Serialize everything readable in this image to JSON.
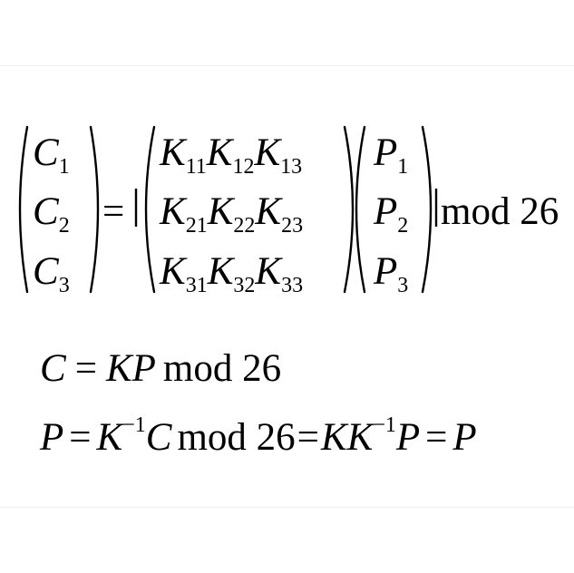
{
  "equation": {
    "lhs": [
      {
        "base": "C",
        "sub": "1"
      },
      {
        "base": "C",
        "sub": "2"
      },
      {
        "base": "C",
        "sub": "3"
      }
    ],
    "equals": "=",
    "key_matrix": [
      [
        {
          "base": "K",
          "sub": "11"
        },
        {
          "base": "K",
          "sub": "12"
        },
        {
          "base": "K",
          "sub": "13"
        }
      ],
      [
        {
          "base": "K",
          "sub": "21"
        },
        {
          "base": "K",
          "sub": "22"
        },
        {
          "base": "K",
          "sub": "23"
        }
      ],
      [
        {
          "base": "K",
          "sub": "31"
        },
        {
          "base": "K",
          "sub": "32"
        },
        {
          "base": "K",
          "sub": "33"
        }
      ]
    ],
    "plain_vector": [
      {
        "base": "P",
        "sub": "1"
      },
      {
        "base": "P",
        "sub": "2"
      },
      {
        "base": "P",
        "sub": "3"
      }
    ],
    "modulus": "mod 26"
  },
  "line2": {
    "c": "C",
    "eq": "=",
    "kp": "KP",
    "mod": "mod 26"
  },
  "line3": {
    "p": "P",
    "eq1": "=",
    "k": "K",
    "inv1": "−1",
    "c": "C",
    "mod": "mod 26",
    "eq2": "=",
    "kk": "KK",
    "inv2": "−1",
    "p2": "P",
    "eq3": "=",
    "p3": "P"
  }
}
